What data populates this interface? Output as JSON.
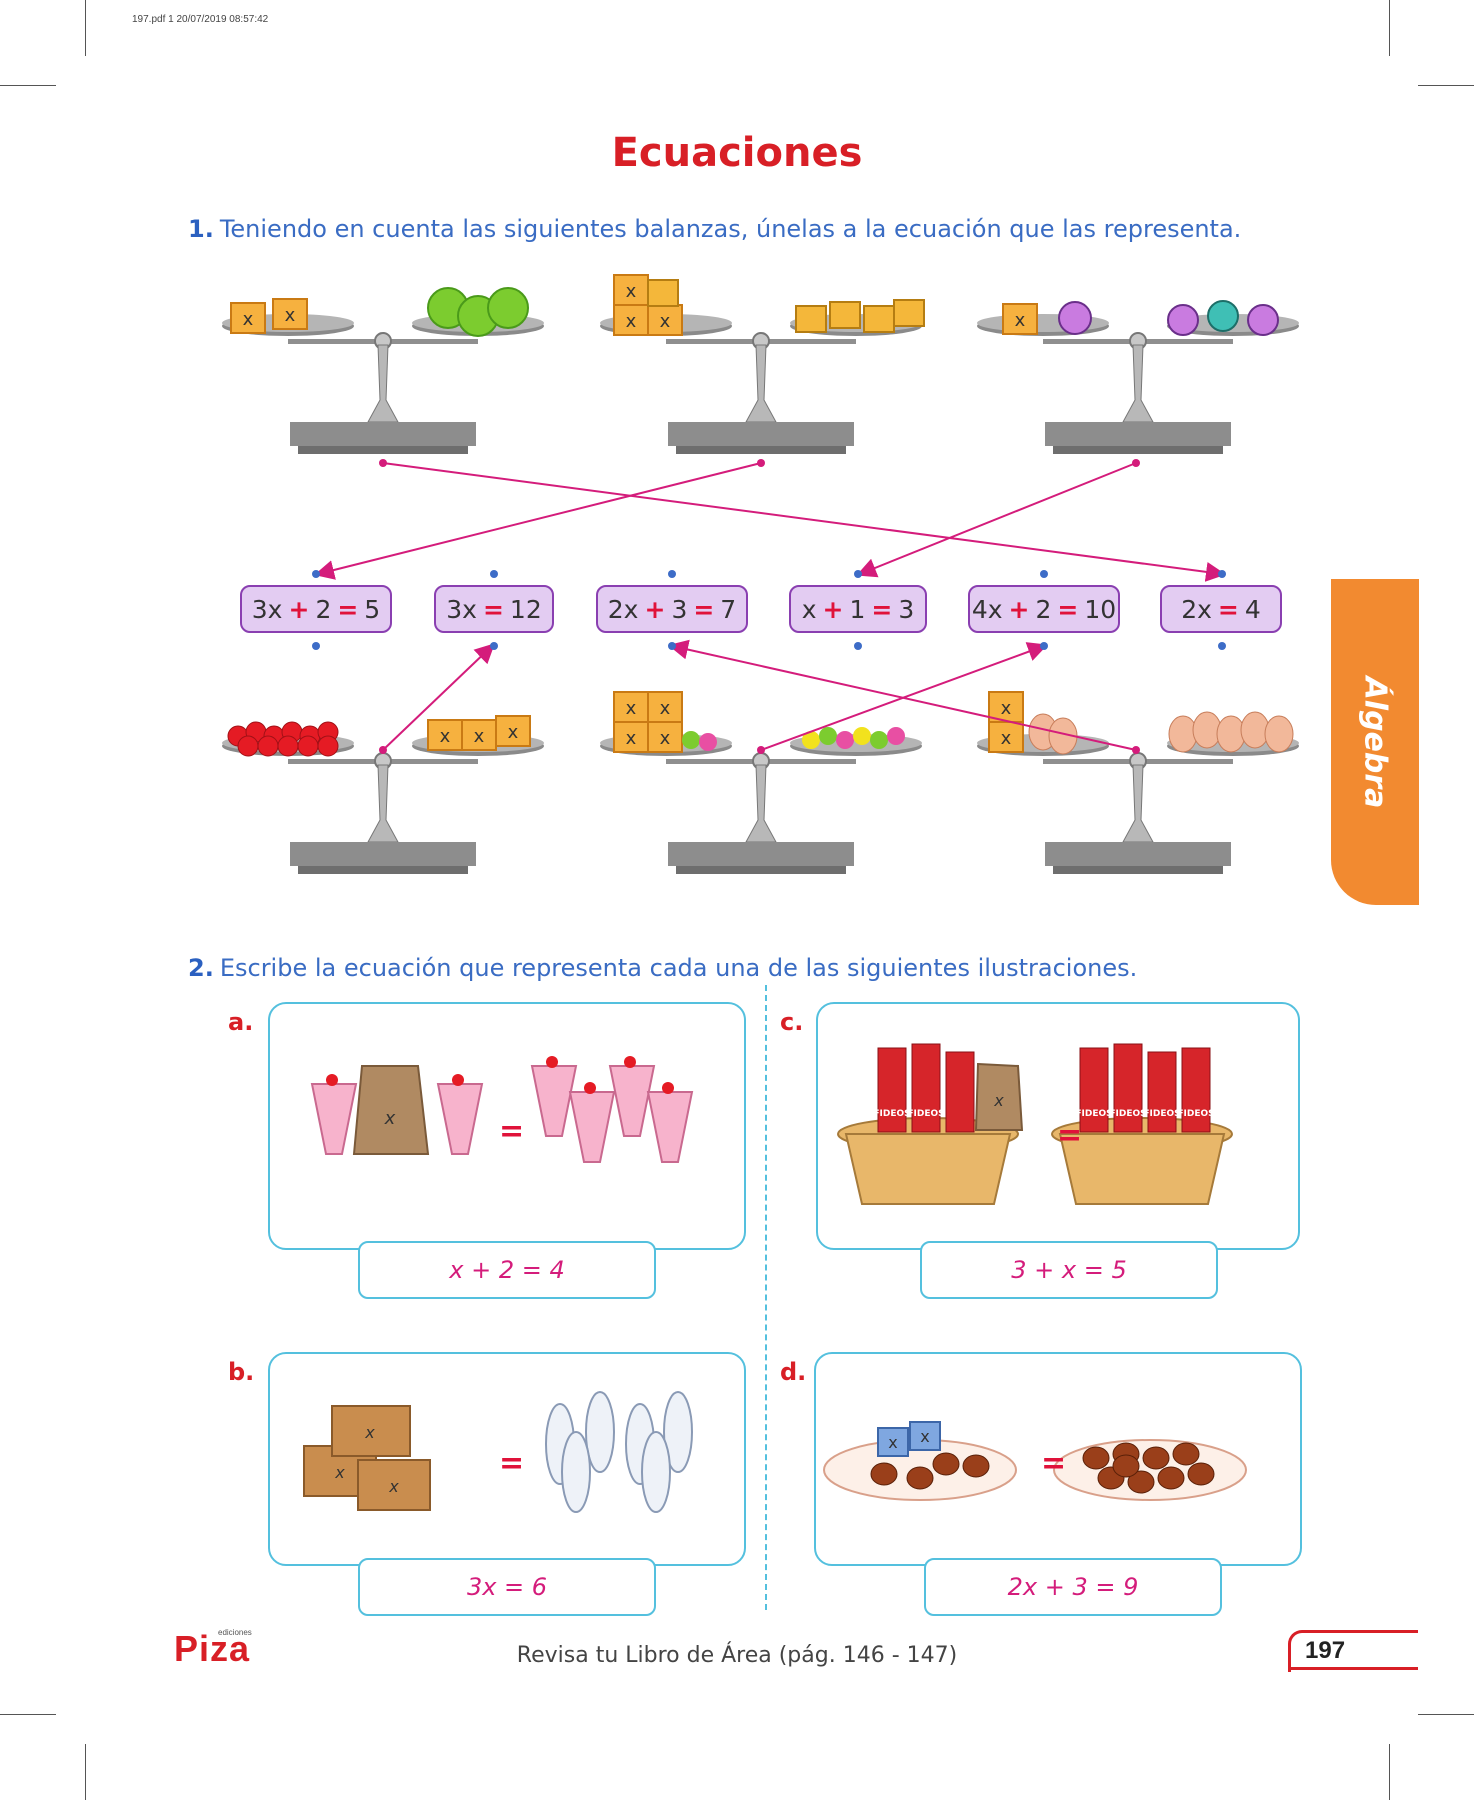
{
  "print_meta": "197.pdf   1   20/07/2019   08:57:42",
  "title": "Ecuaciones",
  "exercise1": {
    "number": "1.",
    "text": "Teniendo en cuenta las siguientes balanzas, únelas a la ecuación que las representa.",
    "equations": [
      {
        "lhs_a": "3x",
        "op": "+",
        "lhs_b": "2",
        "eq": "=",
        "rhs": "5"
      },
      {
        "lhs_a": "3x",
        "op": "",
        "lhs_b": "",
        "eq": "=",
        "rhs": "12"
      },
      {
        "lhs_a": "2x",
        "op": "+",
        "lhs_b": "3",
        "eq": "=",
        "rhs": "7"
      },
      {
        "lhs_a": "x",
        "op": "+",
        "lhs_b": "1",
        "eq": "=",
        "rhs": "3"
      },
      {
        "lhs_a": "4x",
        "op": "+",
        "lhs_b": "2",
        "eq": "=",
        "rhs": "10"
      },
      {
        "lhs_a": "2x",
        "op": "",
        "lhs_b": "",
        "eq": "=",
        "rhs": "4"
      }
    ],
    "box_label": "x"
  },
  "exercise2": {
    "number": "2.",
    "text": "Escribe la ecuación que representa cada una de las siguientes ilustraciones.",
    "items": [
      {
        "letter": "a.",
        "answer": "x + 2 = 4"
      },
      {
        "letter": "c.",
        "answer": "3 + x = 5"
      },
      {
        "letter": "b.",
        "answer": "3x = 6"
      },
      {
        "letter": "d.",
        "answer": "2x + 3 = 9"
      }
    ],
    "equals": "=",
    "fideos": "FIDEOS"
  },
  "side_tab": "Álgebra",
  "footer": "Revisa tu Libro de Área (pág. 146 - 147)",
  "page_number": "197",
  "logo": "Piza",
  "logo_sub": "ediciones"
}
